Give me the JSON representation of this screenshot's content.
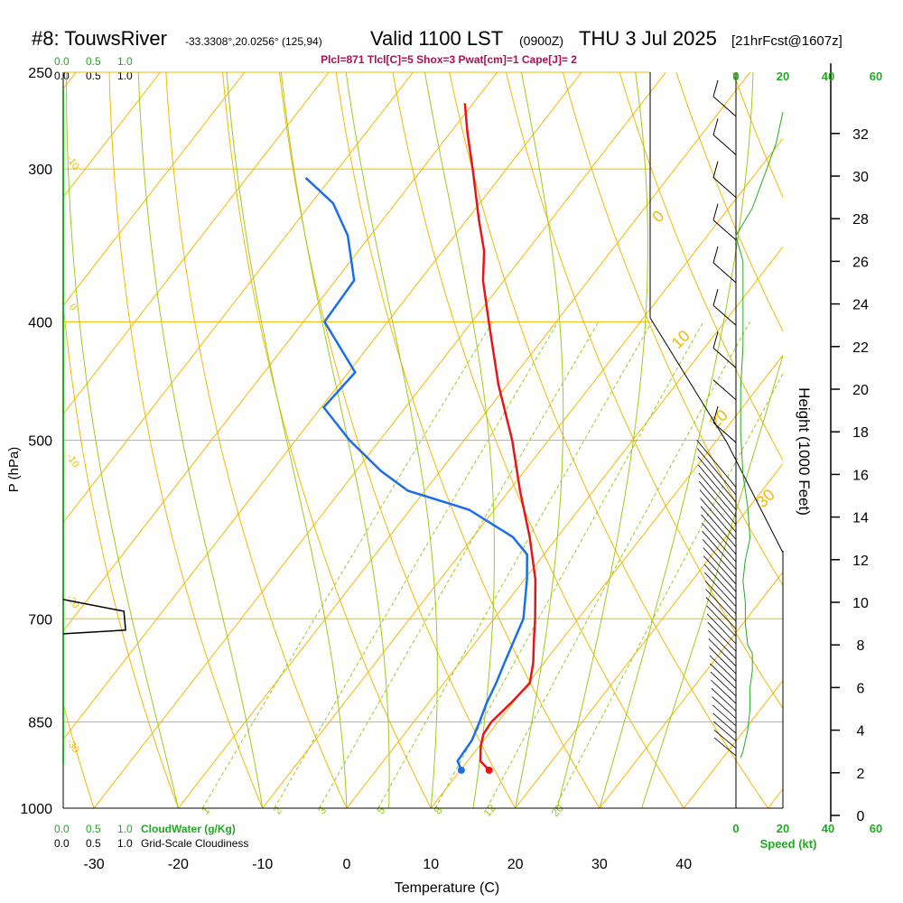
{
  "header": {
    "station": "#8: TouwsRiver",
    "coords": "-33.3308°,20.0256° (125,94)",
    "valid": "Valid 1100 LST",
    "utc": "(0900Z)",
    "date": "THU 3 Jul 2025",
    "fcst": "[21hrFcst@1607z]",
    "indices": "Plcl=871 Tlcl[C]=5 Shox=3 Pwat[cm]=1 Cape[J]= 2"
  },
  "labels": {
    "cloud_ticks": [
      "0.0",
      "0.5",
      "1.0"
    ],
    "cloudwater": "CloudWater (g/Kg)",
    "cloudiness": "Grid-Scale Cloudiness",
    "speed": "Speed (kt)",
    "height_axis": "Height (1000 Feet)",
    "p_axis": "P (hPa)",
    "t_axis": "Temperature (C)"
  },
  "colors": {
    "isotherm": "#f5b800",
    "dry_adiabat": "#f5b800",
    "moist_adiabat": "#9ccc1c",
    "mixing_ratio": "#9ccc1c",
    "temperature": "#e8141a",
    "dewpoint": "#1a6ee8",
    "wind": "#000000",
    "speed_profile": "#22aa22",
    "cloud": "#22aa22",
    "indices": "#aa1155"
  },
  "chart_data": {
    "type": "skew-t",
    "xlabel": "Temperature (C)",
    "ylabel": "P (hPa)",
    "xlim": [
      -35,
      50
    ],
    "ylim": [
      250,
      1000
    ],
    "x_ticks": [
      -30,
      -20,
      -10,
      0,
      10,
      20,
      30,
      40
    ],
    "p_ticks": [
      250,
      300,
      400,
      500,
      700,
      850,
      1000
    ],
    "height_axis": {
      "label": "Height (1000 Feet)",
      "ticks": [
        0,
        2,
        4,
        6,
        8,
        10,
        12,
        14,
        16,
        18,
        20,
        22,
        24,
        26,
        28,
        30,
        32
      ]
    },
    "dry_adiabat_labels": [
      -30,
      -20,
      -10,
      0,
      10,
      20,
      30
    ],
    "mixing_ratio_labels": [
      "1",
      "2",
      "3",
      "5",
      "8",
      "12",
      "20"
    ],
    "temperature": [
      {
        "p": 931,
        "t": 13.4
      },
      {
        "p": 915,
        "t": 11.5
      },
      {
        "p": 890,
        "t": 10.2
      },
      {
        "p": 870,
        "t": 9.4
      },
      {
        "p": 850,
        "t": 9.2
      },
      {
        "p": 820,
        "t": 9.8
      },
      {
        "p": 790,
        "t": 10.2
      },
      {
        "p": 760,
        "t": 8.7
      },
      {
        "p": 730,
        "t": 6.8
      },
      {
        "p": 700,
        "t": 4.9
      },
      {
        "p": 650,
        "t": 1.3
      },
      {
        "p": 600,
        "t": -3.3
      },
      {
        "p": 550,
        "t": -8.7
      },
      {
        "p": 500,
        "t": -14.3
      },
      {
        "p": 450,
        "t": -21.1
      },
      {
        "p": 400,
        "t": -28.0
      },
      {
        "p": 370,
        "t": -32.5
      },
      {
        "p": 350,
        "t": -35.1
      },
      {
        "p": 330,
        "t": -38.6
      },
      {
        "p": 300,
        "t": -44.0
      },
      {
        "p": 280,
        "t": -48.0
      },
      {
        "p": 265,
        "t": -51.0
      }
    ],
    "dewpoint": [
      {
        "p": 931,
        "t": 10.1
      },
      {
        "p": 915,
        "t": 8.8
      },
      {
        "p": 880,
        "t": 8.6
      },
      {
        "p": 850,
        "t": 7.8
      },
      {
        "p": 820,
        "t": 6.9
      },
      {
        "p": 790,
        "t": 6.2
      },
      {
        "p": 760,
        "t": 5.3
      },
      {
        "p": 700,
        "t": 3.5
      },
      {
        "p": 650,
        "t": 0.3
      },
      {
        "p": 620,
        "t": -2.0
      },
      {
        "p": 600,
        "t": -5.3
      },
      {
        "p": 570,
        "t": -13.0
      },
      {
        "p": 550,
        "t": -22.0
      },
      {
        "p": 530,
        "t": -27.0
      },
      {
        "p": 500,
        "t": -33.6
      },
      {
        "p": 470,
        "t": -39.7
      },
      {
        "p": 440,
        "t": -39.2
      },
      {
        "p": 400,
        "t": -47.5
      },
      {
        "p": 370,
        "t": -47.8
      },
      {
        "p": 340,
        "t": -52.7
      },
      {
        "p": 320,
        "t": -57.4
      },
      {
        "p": 305,
        "t": -63.0
      }
    ],
    "speed_profile": [
      {
        "h": 2.7,
        "s": 2
      },
      {
        "h": 3.0,
        "s": 3
      },
      {
        "h": 4.0,
        "s": 5
      },
      {
        "h": 5.0,
        "s": 6
      },
      {
        "h": 6.0,
        "s": 6
      },
      {
        "h": 6.8,
        "s": 7
      },
      {
        "h": 7.6,
        "s": 7
      },
      {
        "h": 8.0,
        "s": 5
      },
      {
        "h": 9.0,
        "s": 4
      },
      {
        "h": 10.0,
        "s": 4
      },
      {
        "h": 11.0,
        "s": 3
      },
      {
        "h": 12.0,
        "s": 4
      },
      {
        "h": 13.0,
        "s": 6
      },
      {
        "h": 14.5,
        "s": 5
      },
      {
        "h": 16.0,
        "s": 3
      },
      {
        "h": 18.0,
        "s": 2
      },
      {
        "h": 20.0,
        "s": 2
      },
      {
        "h": 22.0,
        "s": 3
      },
      {
        "h": 24.0,
        "s": 3
      },
      {
        "h": 26.0,
        "s": 3
      },
      {
        "h": 27.2,
        "s": 0
      },
      {
        "h": 28.5,
        "s": 7
      },
      {
        "h": 30.0,
        "s": 12
      },
      {
        "h": 31.5,
        "s": 17
      },
      {
        "h": 33.0,
        "s": 20
      }
    ],
    "cloudiness": [
      {
        "p": 675,
        "c": 0.0
      },
      {
        "p": 690,
        "c": 0.7
      },
      {
        "p": 715,
        "c": 0.72
      },
      {
        "p": 720,
        "c": 0.0
      }
    ]
  }
}
